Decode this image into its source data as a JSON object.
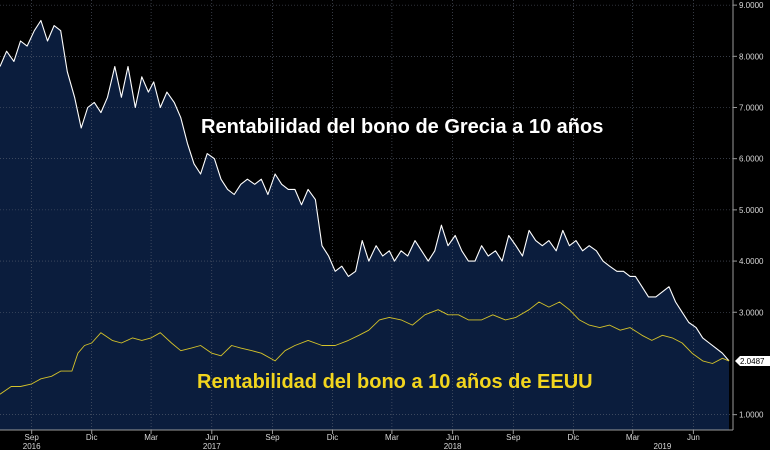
{
  "chart_data": {
    "type": "area",
    "title": "",
    "xlabel": "",
    "ylabel": "",
    "ylim": [
      0.7,
      9.1
    ],
    "grid": true,
    "y_ticks": [
      "9.0000",
      "8.0000",
      "7.0000",
      "6.0000",
      "5.0000",
      "4.0000",
      "3.0000",
      "1.0000"
    ],
    "y_tick_values": [
      9,
      8,
      7,
      6,
      5,
      4,
      3,
      1
    ],
    "x_ticks": [
      "Sep",
      "Dic",
      "Mar",
      "Jun",
      "Sep",
      "Dic",
      "Mar",
      "Jun",
      "Sep",
      "Dic",
      "Mar",
      "Jun"
    ],
    "x_tick_dates": [
      "2016-09-01",
      "2016-12-01",
      "2017-03-01",
      "2017-06-01",
      "2017-09-01",
      "2017-12-01",
      "2018-03-01",
      "2018-06-01",
      "2018-09-01",
      "2018-12-01",
      "2019-03-01",
      "2019-06-01"
    ],
    "year_labels": [
      {
        "label": "2016",
        "date": "2016-09-01"
      },
      {
        "label": "2017",
        "date": "2017-06-01"
      },
      {
        "label": "2018",
        "date": "2018-06-01"
      },
      {
        "label": "2019",
        "date": "2019-04-15"
      }
    ],
    "x_range": [
      "2016-07-15",
      "2019-07-31"
    ],
    "annotations": {
      "greece": "Rentabilidad del bono de Grecia a 10 años",
      "us": "Rentabilidad del bono a 10 años de EEUU"
    },
    "last_value_label": "2.0487",
    "series": [
      {
        "color": "#ffffff",
        "fill": "#0b1d3d",
        "points": [
          [
            "2016-07-15",
            7.8
          ],
          [
            "2016-07-25",
            8.1
          ],
          [
            "2016-08-05",
            7.9
          ],
          [
            "2016-08-15",
            8.3
          ],
          [
            "2016-08-25",
            8.2
          ],
          [
            "2016-09-05",
            8.5
          ],
          [
            "2016-09-15",
            8.7
          ],
          [
            "2016-09-25",
            8.3
          ],
          [
            "2016-10-05",
            8.6
          ],
          [
            "2016-10-15",
            8.5
          ],
          [
            "2016-10-25",
            7.7
          ],
          [
            "2016-11-05",
            7.2
          ],
          [
            "2016-11-15",
            6.6
          ],
          [
            "2016-11-25",
            7.0
          ],
          [
            "2016-12-05",
            7.1
          ],
          [
            "2016-12-15",
            6.9
          ],
          [
            "2016-12-25",
            7.2
          ],
          [
            "2017-01-05",
            7.8
          ],
          [
            "2017-01-15",
            7.2
          ],
          [
            "2017-01-25",
            7.8
          ],
          [
            "2017-02-05",
            7.0
          ],
          [
            "2017-02-15",
            7.6
          ],
          [
            "2017-02-25",
            7.3
          ],
          [
            "2017-03-05",
            7.5
          ],
          [
            "2017-03-15",
            7.0
          ],
          [
            "2017-03-25",
            7.3
          ],
          [
            "2017-04-05",
            7.1
          ],
          [
            "2017-04-15",
            6.8
          ],
          [
            "2017-04-25",
            6.3
          ],
          [
            "2017-05-05",
            5.9
          ],
          [
            "2017-05-15",
            5.7
          ],
          [
            "2017-05-25",
            6.1
          ],
          [
            "2017-06-05",
            6.0
          ],
          [
            "2017-06-15",
            5.6
          ],
          [
            "2017-06-25",
            5.4
          ],
          [
            "2017-07-05",
            5.3
          ],
          [
            "2017-07-15",
            5.5
          ],
          [
            "2017-07-25",
            5.6
          ],
          [
            "2017-08-05",
            5.5
          ],
          [
            "2017-08-15",
            5.6
          ],
          [
            "2017-08-25",
            5.3
          ],
          [
            "2017-09-05",
            5.7
          ],
          [
            "2017-09-15",
            5.5
          ],
          [
            "2017-09-25",
            5.4
          ],
          [
            "2017-10-05",
            5.4
          ],
          [
            "2017-10-15",
            5.1
          ],
          [
            "2017-10-25",
            5.4
          ],
          [
            "2017-11-05",
            5.2
          ],
          [
            "2017-11-15",
            4.3
          ],
          [
            "2017-11-25",
            4.1
          ],
          [
            "2017-12-05",
            3.8
          ],
          [
            "2017-12-15",
            3.9
          ],
          [
            "2017-12-25",
            3.7
          ],
          [
            "2018-01-05",
            3.8
          ],
          [
            "2018-01-15",
            4.4
          ],
          [
            "2018-01-25",
            4.0
          ],
          [
            "2018-02-05",
            4.3
          ],
          [
            "2018-02-15",
            4.1
          ],
          [
            "2018-02-25",
            4.2
          ],
          [
            "2018-03-05",
            4.0
          ],
          [
            "2018-03-15",
            4.2
          ],
          [
            "2018-03-25",
            4.1
          ],
          [
            "2018-04-05",
            4.4
          ],
          [
            "2018-04-15",
            4.2
          ],
          [
            "2018-04-25",
            4.0
          ],
          [
            "2018-05-05",
            4.2
          ],
          [
            "2018-05-15",
            4.7
          ],
          [
            "2018-05-25",
            4.3
          ],
          [
            "2018-06-05",
            4.5
          ],
          [
            "2018-06-15",
            4.2
          ],
          [
            "2018-06-25",
            4.0
          ],
          [
            "2018-07-05",
            4.0
          ],
          [
            "2018-07-15",
            4.3
          ],
          [
            "2018-07-25",
            4.1
          ],
          [
            "2018-08-05",
            4.2
          ],
          [
            "2018-08-15",
            4.0
          ],
          [
            "2018-08-25",
            4.5
          ],
          [
            "2018-09-05",
            4.3
          ],
          [
            "2018-09-15",
            4.1
          ],
          [
            "2018-09-25",
            4.6
          ],
          [
            "2018-10-05",
            4.4
          ],
          [
            "2018-10-15",
            4.3
          ],
          [
            "2018-10-25",
            4.4
          ],
          [
            "2018-11-05",
            4.2
          ],
          [
            "2018-11-15",
            4.6
          ],
          [
            "2018-11-25",
            4.3
          ],
          [
            "2018-12-05",
            4.4
          ],
          [
            "2018-12-15",
            4.2
          ],
          [
            "2018-12-25",
            4.3
          ],
          [
            "2019-01-05",
            4.2
          ],
          [
            "2019-01-15",
            4.0
          ],
          [
            "2019-01-25",
            3.9
          ],
          [
            "2019-02-05",
            3.8
          ],
          [
            "2019-02-15",
            3.8
          ],
          [
            "2019-02-25",
            3.7
          ],
          [
            "2019-03-05",
            3.7
          ],
          [
            "2019-03-15",
            3.5
          ],
          [
            "2019-03-25",
            3.3
          ],
          [
            "2019-04-05",
            3.3
          ],
          [
            "2019-04-15",
            3.4
          ],
          [
            "2019-04-25",
            3.5
          ],
          [
            "2019-05-05",
            3.2
          ],
          [
            "2019-05-15",
            3.0
          ],
          [
            "2019-05-25",
            2.8
          ],
          [
            "2019-06-05",
            2.7
          ],
          [
            "2019-06-15",
            2.5
          ],
          [
            "2019-06-25",
            2.4
          ],
          [
            "2019-07-05",
            2.3
          ],
          [
            "2019-07-15",
            2.2
          ],
          [
            "2019-07-25",
            2.05
          ]
        ]
      },
      {
        "color": "#d4c22a",
        "points": [
          [
            "2016-07-15",
            1.4
          ],
          [
            "2016-08-01",
            1.55
          ],
          [
            "2016-08-15",
            1.55
          ],
          [
            "2016-09-01",
            1.6
          ],
          [
            "2016-09-15",
            1.7
          ],
          [
            "2016-10-01",
            1.75
          ],
          [
            "2016-10-15",
            1.85
          ],
          [
            "2016-11-01",
            1.85
          ],
          [
            "2016-11-10",
            2.2
          ],
          [
            "2016-11-20",
            2.35
          ],
          [
            "2016-12-01",
            2.4
          ],
          [
            "2016-12-15",
            2.6
          ],
          [
            "2017-01-01",
            2.45
          ],
          [
            "2017-01-15",
            2.4
          ],
          [
            "2017-02-01",
            2.5
          ],
          [
            "2017-02-15",
            2.45
          ],
          [
            "2017-03-01",
            2.5
          ],
          [
            "2017-03-15",
            2.6
          ],
          [
            "2017-04-01",
            2.4
          ],
          [
            "2017-04-15",
            2.25
          ],
          [
            "2017-05-01",
            2.3
          ],
          [
            "2017-05-15",
            2.35
          ],
          [
            "2017-06-01",
            2.2
          ],
          [
            "2017-06-15",
            2.15
          ],
          [
            "2017-07-01",
            2.35
          ],
          [
            "2017-07-15",
            2.3
          ],
          [
            "2017-08-01",
            2.25
          ],
          [
            "2017-08-15",
            2.2
          ],
          [
            "2017-09-05",
            2.05
          ],
          [
            "2017-09-20",
            2.25
          ],
          [
            "2017-10-05",
            2.35
          ],
          [
            "2017-10-25",
            2.45
          ],
          [
            "2017-11-15",
            2.35
          ],
          [
            "2017-12-05",
            2.35
          ],
          [
            "2017-12-25",
            2.45
          ],
          [
            "2018-01-10",
            2.55
          ],
          [
            "2018-01-25",
            2.65
          ],
          [
            "2018-02-10",
            2.85
          ],
          [
            "2018-02-25",
            2.9
          ],
          [
            "2018-03-15",
            2.85
          ],
          [
            "2018-04-01",
            2.75
          ],
          [
            "2018-04-20",
            2.95
          ],
          [
            "2018-05-10",
            3.05
          ],
          [
            "2018-05-25",
            2.95
          ],
          [
            "2018-06-10",
            2.95
          ],
          [
            "2018-06-25",
            2.85
          ],
          [
            "2018-07-15",
            2.85
          ],
          [
            "2018-08-01",
            2.95
          ],
          [
            "2018-08-20",
            2.85
          ],
          [
            "2018-09-05",
            2.9
          ],
          [
            "2018-09-25",
            3.05
          ],
          [
            "2018-10-10",
            3.2
          ],
          [
            "2018-10-25",
            3.1
          ],
          [
            "2018-11-10",
            3.2
          ],
          [
            "2018-11-25",
            3.05
          ],
          [
            "2018-12-10",
            2.85
          ],
          [
            "2018-12-25",
            2.75
          ],
          [
            "2019-01-10",
            2.7
          ],
          [
            "2019-01-25",
            2.75
          ],
          [
            "2019-02-10",
            2.65
          ],
          [
            "2019-02-25",
            2.7
          ],
          [
            "2019-03-15",
            2.55
          ],
          [
            "2019-03-30",
            2.45
          ],
          [
            "2019-04-15",
            2.55
          ],
          [
            "2019-04-30",
            2.5
          ],
          [
            "2019-05-15",
            2.4
          ],
          [
            "2019-05-30",
            2.2
          ],
          [
            "2019-06-15",
            2.05
          ],
          [
            "2019-06-30",
            2.0
          ],
          [
            "2019-07-15",
            2.1
          ],
          [
            "2019-07-25",
            2.05
          ]
        ]
      }
    ]
  }
}
